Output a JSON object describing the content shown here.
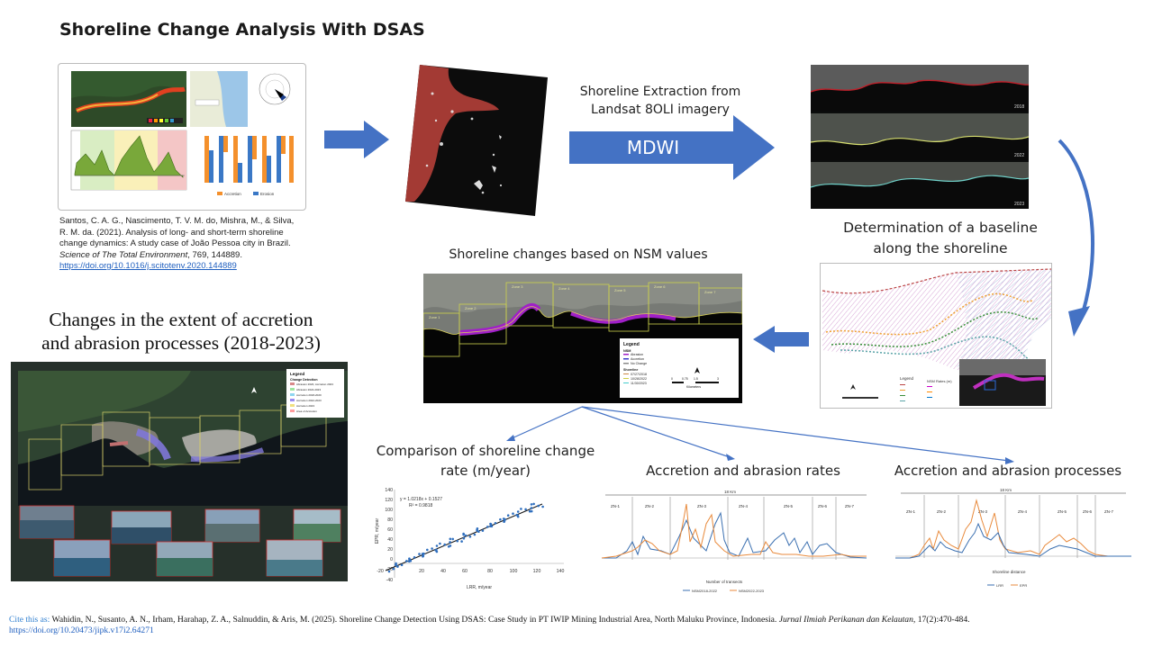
{
  "title": "Shoreline Change Analysis With DSAS",
  "reference": {
    "line1": "Santos, C. A. G., Nascimento, T. V. M. do, Mishra, M., & Silva,",
    "line2": "R. M. da. (2021). Analysis of long- and short-term shoreline",
    "line3": "change dynamics: A study case of João Pessoa city in Brazil.",
    "journal": "Science of The Total Environment",
    "journal_rest": ", 769, 144889.",
    "doi": "https://doi.org/10.1016/j.scitotenv.2020.144889"
  },
  "extraction": {
    "line1": "Shoreline Extraction from",
    "line2": "Landsat 8OLI imagery",
    "method": "MDWI"
  },
  "baseline": {
    "line1": "Determination of a baseline",
    "line2": "along the shoreline"
  },
  "nsm_title": "Shoreline changes based on NSM values",
  "extent_title": {
    "line1": "Changes in the extent of accretion",
    "line2": "and abrasion processes (2018-2023)"
  },
  "comparison_title": {
    "line1": "Comparison of shoreline change",
    "line2": "rate (m/year)"
  },
  "rates_title": "Accretion and abrasion rates",
  "processes_title": "Accretion and abrasion processes",
  "scatter": {
    "equation": "y = 1.0218x + 0.1527",
    "r2": "R² = 0.9818",
    "xlabel": "LRR, m/year",
    "ylabel": "EPR, m/year",
    "xticks": [
      "-20",
      "20",
      "40",
      "60",
      "80",
      "100",
      "120",
      "140"
    ],
    "yticks": [
      "140",
      "120",
      "100",
      "80",
      "60",
      "40",
      "20",
      "0",
      "-20",
      "-40"
    ]
  },
  "rates_chart": {
    "span": "18 Km",
    "zones": [
      "ZN-1",
      "ZN-2",
      "ZN-3",
      "ZN-4",
      "ZN-5",
      "ZN-6",
      "ZN-7"
    ],
    "xlabel": "Number of transects",
    "legend": [
      "NSM2018-2022",
      "NSM2022-2023"
    ]
  },
  "processes_chart": {
    "span": "18 Km",
    "zones": [
      "ZN-1",
      "ZN-2",
      "ZN-3",
      "ZN-4",
      "ZN-5",
      "ZN-6",
      "ZN-7"
    ],
    "xlabel": "Shoreline distance",
    "legend": [
      "LRR",
      "EPR"
    ]
  },
  "santos_chart": {
    "legend": [
      "Accretion",
      "Erosion"
    ]
  },
  "nsm_map": {
    "legend_title": "Legend",
    "nsm": "NSM",
    "items": [
      "Abrasion",
      "Accretion",
      "No Change"
    ],
    "shoreline": "Shoreline",
    "dates": [
      "07/27/2018",
      "10/28/2022",
      "11/30/2023"
    ],
    "scale": [
      "0",
      "0.75",
      "1.5",
      "3"
    ],
    "units": "Kilometers",
    "zones": [
      "Zone 1",
      "Zone 2",
      "Zone 3",
      "Zone 4",
      "Zone 5",
      "Zone 6",
      "Zone 7"
    ]
  },
  "extent_map": {
    "legend_title": "Legend",
    "group": "Change Detection",
    "items": [
      "Abrasion 2020, Accretion 2023",
      "Abrasion 2022-2023",
      "Accretion 2018-2020",
      "Accretion 2022-2023",
      "Accretion 2023",
      "Area of Accretion"
    ]
  },
  "baseline_map": {
    "legend": "Legend",
    "nsm_rates": "NSM Rates (m)"
  },
  "landsat_years": [
    "2018",
    "2022",
    "2023"
  ],
  "citation": {
    "lead": "Cite this as:",
    "text": " Wahidin, N., Susanto, A. N., Irham, Harahap, Z. A., Salnuddin, & Aris, M. (2025). Shoreline Change Detection Using DSAS: Case Study in PT IWIP Mining Industrial Area, North Maluku Province, Indonesia. ",
    "journal": "Jurnal Ilmiah Perikanan dan Kelautan,",
    "rest": " 17(2):470-484.",
    "doi": "https://doi.org/10.20473/jipk.v17i2.64271"
  },
  "colors": {
    "arrow": "#4472c4",
    "accretion": "#f4902c",
    "erosion": "#3a78c6",
    "abrasion": "#9b3ce0"
  }
}
